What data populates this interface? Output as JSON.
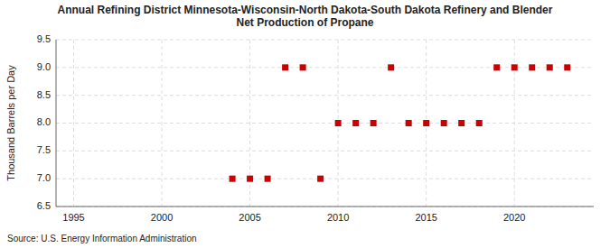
{
  "chart_data": {
    "type": "scatter",
    "title": "Annual Refining District Minnesota-Wisconsin-North Dakota-South Dakota Refinery and Blender\nNet Production of Propane",
    "y_label": "Thousand Barrels per Day",
    "source": "Source: U.S. Energy Information Administration",
    "x": [
      2004,
      2005,
      2006,
      2007,
      2008,
      2009,
      2010,
      2011,
      2012,
      2013,
      2014,
      2015,
      2016,
      2017,
      2018,
      2019,
      2020,
      2021,
      2022,
      2023
    ],
    "values": [
      7.0,
      7.0,
      7.0,
      9.0,
      9.0,
      7.0,
      8.0,
      8.0,
      8.0,
      9.0,
      8.0,
      8.0,
      8.0,
      8.0,
      8.0,
      9.0,
      9.0,
      9.0,
      9.0,
      9.0
    ],
    "color": "#cc0000",
    "marker": "square",
    "xlim": [
      1994,
      2024.5
    ],
    "ylim": [
      6.5,
      9.5
    ],
    "xticks": [
      1995,
      2000,
      2005,
      2010,
      2015,
      2020
    ],
    "yticks": [
      6.5,
      {
        "value": 7.0,
        "label": "7.0"
      },
      7.5,
      {
        "value": 8.0,
        "label": "8.0"
      },
      8.5,
      {
        "value": 9.0,
        "label": "9.0"
      },
      9.5
    ],
    "grid": true
  }
}
